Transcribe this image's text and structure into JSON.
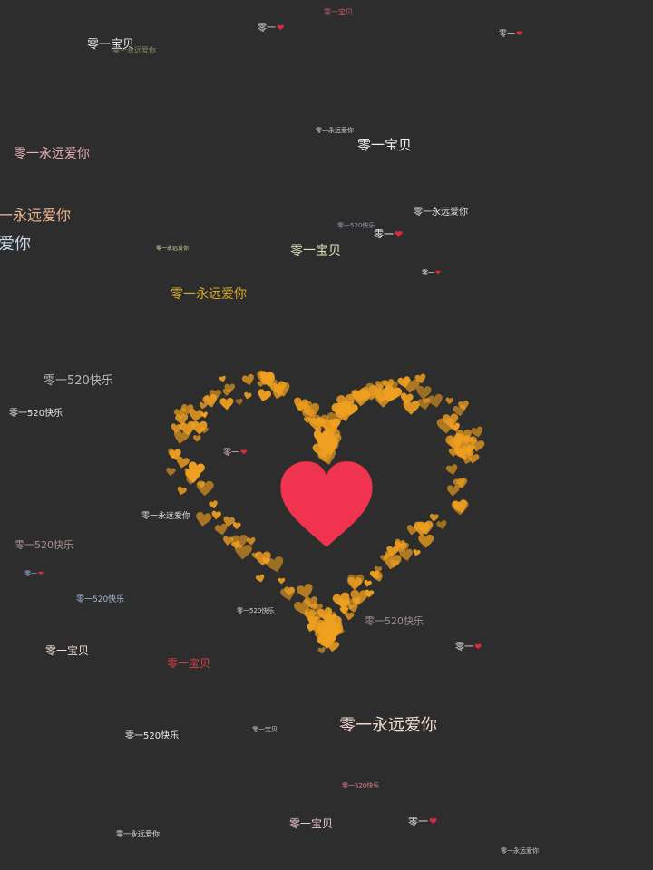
{
  "colors": {
    "background": "#2d2d2d",
    "heart_core": "#f0344f",
    "heart_particles": "#f0a020",
    "heart_glyph": "#e0283c"
  },
  "icons": {
    "central": "heart-icon",
    "particles": "heart-particle-icon"
  },
  "phrases": {
    "p01": "零一宝贝",
    "p02": "零一",
    "p03": "零一永远爱你",
    "p04": "零一宝贝",
    "p05": "零一永远爱你",
    "p06": "一永远爱你",
    "p07": "爱你",
    "p08": "零一永远爱你",
    "p09": "零一",
    "p10": "零一宝贝",
    "p11": "零一永远爱你",
    "p12": "零一520快乐",
    "p13": "零一520快乐",
    "p14": "零一",
    "p15": "零一永远爱你",
    "p16": "零一520快乐",
    "p17": "零一520快乐",
    "p18": "零一宝贝",
    "p19": "零一宝贝",
    "p20": "零一520快乐",
    "p21": "零一",
    "p22": "零一永远爱你",
    "p23": "零一520快乐",
    "p24": "零一宝贝",
    "p25": "零一永远爱你",
    "p26": "零一宝贝",
    "p27": "零一",
    "p28": "零一520快乐",
    "p29": "零一永远爱你",
    "p30": "零一",
    "p31": "零一宝贝",
    "p32": "零一永远爱你",
    "p33": "零一",
    "p34": "零一宝贝",
    "p35": "零一宝贝"
  }
}
